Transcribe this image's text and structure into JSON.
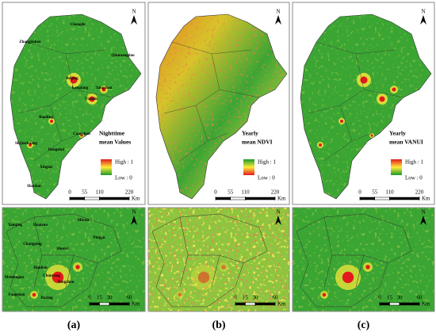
{
  "panels": [
    {
      "label": "(a)",
      "top": {
        "cities": [
          "Chengde",
          "Zhangjiakou",
          "Qinhuangdao",
          "Beijing",
          "Langfang",
          "Tangshan",
          "Tianjin",
          "Baoding",
          "Cangzhou",
          "Shijiazhuang",
          "Hengshui",
          "Xingtai",
          "Handan"
        ],
        "legend": {
          "title_lines": [
            "Nighttime",
            "mean Values"
          ],
          "high": "High : 1",
          "low": "Low : 0"
        },
        "scale": {
          "ticks": [
            0,
            55,
            110,
            220
          ],
          "unit": "Km"
        },
        "north": "N"
      },
      "bottom": {
        "districts": [
          "Yanqing",
          "Huairou",
          "Miyun",
          "Pinggu",
          "Changping",
          "Shunyi",
          "Haidian",
          "Mentougou",
          "Chaoyang",
          "Tongzhou",
          "Fangshan",
          "Daxing"
        ],
        "scale": {
          "ticks": [
            0,
            15,
            30,
            60
          ],
          "unit": "Km"
        },
        "north": "N"
      }
    },
    {
      "label": "(b)",
      "top": {
        "legend": {
          "title_lines": [
            "Yearly",
            "mean NDVI"
          ],
          "high": "High : 1",
          "low": "Low : 0"
        },
        "scale": {
          "ticks": [
            0,
            55,
            110,
            220
          ],
          "unit": "Km"
        },
        "north": "N"
      },
      "bottom": {
        "scale": {
          "ticks": [
            0,
            15,
            30,
            60
          ],
          "unit": "Km"
        },
        "north": "N"
      }
    },
    {
      "label": "(c)",
      "top": {
        "legend": {
          "title_lines": [
            "Yearly",
            "mean VANUI"
          ],
          "high": "High : 1",
          "low": "Low : 0"
        },
        "scale": {
          "ticks": [
            0,
            55,
            110,
            220
          ],
          "unit": "Km"
        },
        "north": "N"
      },
      "bottom": {
        "scale": {
          "ticks": [
            0,
            15,
            30,
            60
          ],
          "unit": "Km"
        },
        "north": "N"
      }
    }
  ]
}
